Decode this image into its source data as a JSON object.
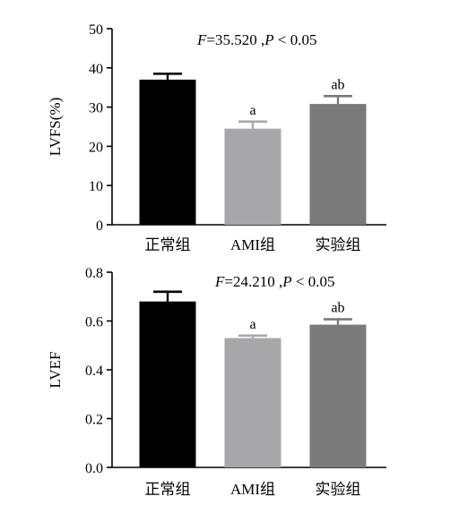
{
  "chart_data": [
    {
      "type": "bar",
      "categories": [
        "正常组",
        "AMI组",
        "实验组"
      ],
      "values": [
        37.0,
        24.5,
        30.8
      ],
      "errors": [
        1.5,
        1.8,
        2.0
      ],
      "significance": [
        "",
        "a",
        "ab"
      ],
      "ylabel": "LVFS(%)",
      "ylim": [
        0,
        50
      ],
      "yticks": [
        "0",
        "10",
        "20",
        "30",
        "40",
        "50"
      ],
      "stat_f": "F",
      "stat_f_value": "=35.520 ,",
      "stat_p": "P",
      "stat_p_value": " < 0.05",
      "bar_colors": [
        "#000000",
        "#a7a7aa",
        "#7a7a7a"
      ]
    },
    {
      "type": "bar",
      "categories": [
        "正常组",
        "AMI组",
        "实验组"
      ],
      "values": [
        0.68,
        0.53,
        0.585
      ],
      "errors": [
        0.04,
        0.01,
        0.022
      ],
      "significance": [
        "",
        "a",
        "ab"
      ],
      "ylabel": "LVEF",
      "ylim": [
        0,
        0.8
      ],
      "yticks": [
        "0.0",
        "0.2",
        "0.4",
        "0.6",
        "0.8"
      ],
      "stat_f": "F",
      "stat_f_value": "=24.210 ,",
      "stat_p": "P",
      "stat_p_value": " < 0.05",
      "bar_colors": [
        "#000000",
        "#a7a7aa",
        "#7a7a7a"
      ]
    }
  ]
}
